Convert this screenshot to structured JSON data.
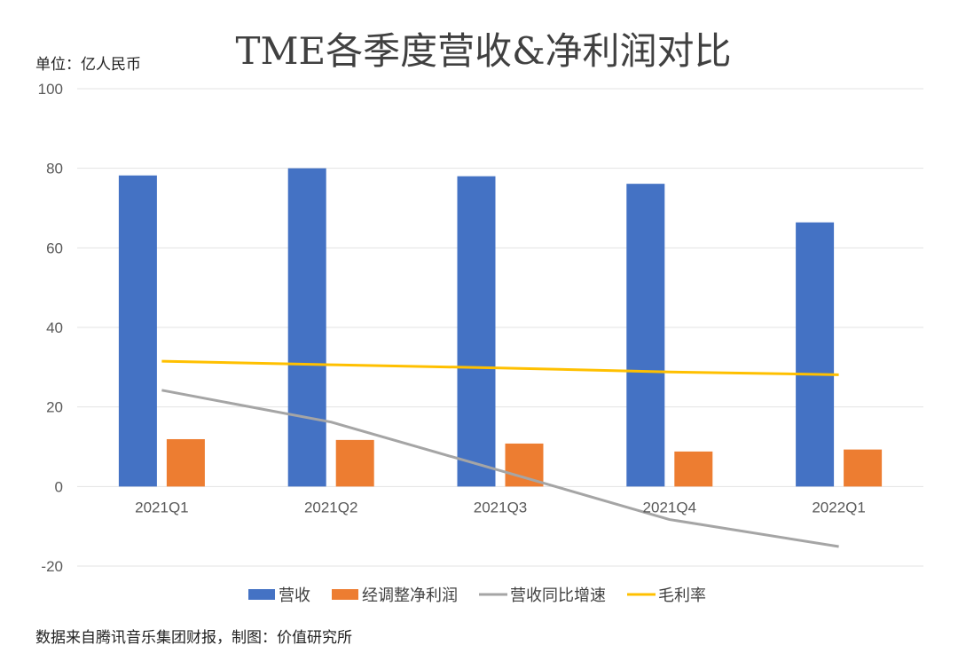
{
  "chart_data": {
    "type": "bar",
    "title": "TME各季度营收&净利润对比",
    "unit_label": "单位：亿人民币",
    "source_note": "数据来自腾讯音乐集团财报，制图：价值研究所",
    "categories": [
      "2021Q1",
      "2021Q2",
      "2021Q3",
      "2021Q4",
      "2022Q1"
    ],
    "ylim": [
      -20,
      100
    ],
    "yticks": [
      100,
      80,
      60,
      40,
      20,
      0,
      -20
    ],
    "grid": true,
    "legend_position": "bottom",
    "bar_series": [
      {
        "name": "营收",
        "color": "#4472C4",
        "values": [
          78.2,
          80.0,
          78.0,
          76.1,
          66.4
        ]
      },
      {
        "name": "经调整净利润",
        "color": "#ED7D31",
        "values": [
          11.9,
          11.7,
          10.8,
          8.8,
          9.3
        ]
      }
    ],
    "line_series": [
      {
        "name": "营收同比增速",
        "color": "#A5A5A5",
        "values": [
          24.2,
          16.2,
          4.0,
          -8.3,
          -15.1
        ]
      },
      {
        "name": "毛利率",
        "color": "#FFC000",
        "values": [
          31.5,
          30.6,
          29.8,
          28.8,
          28.1
        ]
      }
    ]
  }
}
